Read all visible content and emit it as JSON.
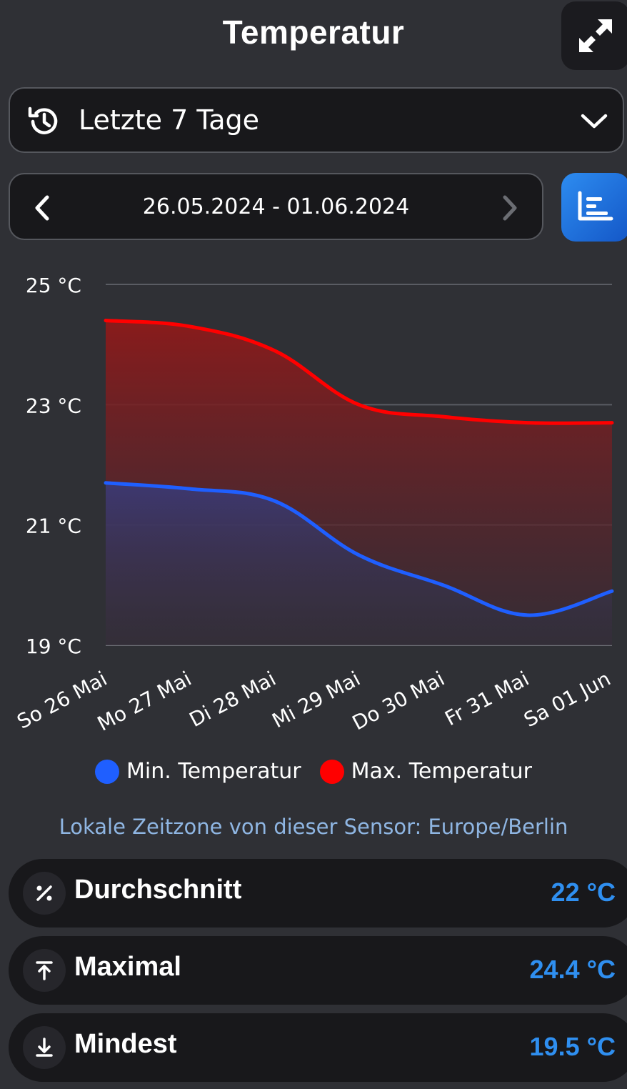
{
  "header": {
    "title": "Temperatur"
  },
  "range_select": {
    "label": "Letzte 7 Tage"
  },
  "date_nav": {
    "range": "26.05.2024 - 01.06.2024"
  },
  "chart_data": {
    "type": "area",
    "x": [
      "So 26 Mai",
      "Mo 27 Mai",
      "Di 28 Mai",
      "Mi 29 Mai",
      "Do 30 Mai",
      "Fr 31 Mai",
      "Sa 01 Jun"
    ],
    "y_ticks": [
      "25 °C",
      "23 °C",
      "21 °C",
      "19 °C"
    ],
    "ylim": [
      19,
      25
    ],
    "series": [
      {
        "name": "Min. Temperatur",
        "color": "#1f5fff",
        "values": [
          21.7,
          21.6,
          21.4,
          20.5,
          20.0,
          19.5,
          19.9
        ]
      },
      {
        "name": "Max. Temperatur",
        "color": "#ff0000",
        "values": [
          24.4,
          24.3,
          23.9,
          23.0,
          22.8,
          22.7,
          22.7
        ]
      }
    ],
    "grid": true,
    "legend": "bottom"
  },
  "legend": {
    "min_label": "Min. Temperatur",
    "max_label": "Max. Temperatur"
  },
  "timezone_note": "Lokale Zeitzone von dieser Sensor: Europe/Berlin",
  "stats": [
    {
      "label": "Durchschnitt",
      "value": "22 °C",
      "icon": "percent-icon"
    },
    {
      "label": "Maximal",
      "value": "24.4 °C",
      "icon": "arrow-up-bar-icon"
    },
    {
      "label": "Mindest",
      "value": "19.5 °C",
      "icon": "arrow-down-bar-icon"
    }
  ]
}
